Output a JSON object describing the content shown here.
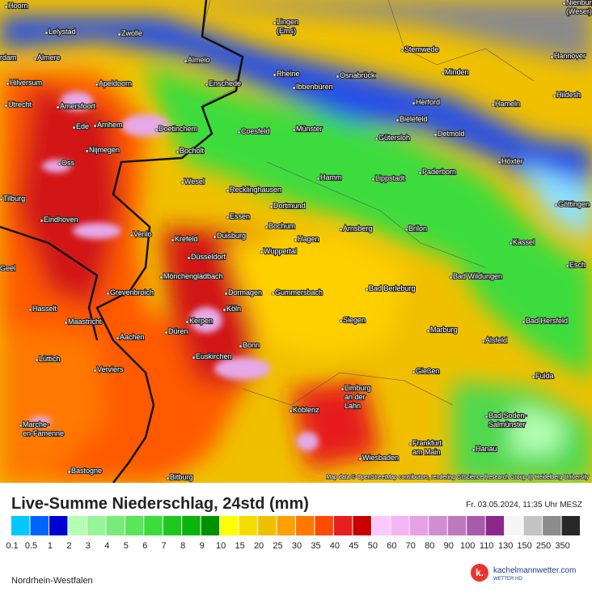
{
  "map": {
    "cities": [
      "Hoorn",
      "Lelystad",
      "Zwolle",
      [
        "Lingen",
        "(Ems)"
      ],
      [
        "Nienburg",
        "(Weser)"
      ],
      "Stemwede",
      "Hannover",
      "rdam",
      "Almere",
      "Almelo",
      "Rheine",
      "Osnabrück",
      "Minden",
      "Hilversum",
      "Apeldoorn",
      "Enschede",
      "Ibbenbüren",
      "Hildesh",
      "Utrecht",
      "Amersfoort",
      "Herford",
      "Hameln",
      "Ede",
      "Arnhem",
      "Doetinchem",
      "Coesfeld",
      "Münster",
      "Bielefeld",
      "Detmold",
      "Gütersloh",
      "Nijmegen",
      "Bocholt",
      "Oss",
      "Höxter",
      "Paderborn",
      "Wesel",
      "Hamm",
      "Lippstadt",
      "Recklinghausen",
      "Tilburg",
      "Dortmund",
      "Göttingen",
      "Essen",
      "Bochum",
      "Eindhoven",
      "Arnsberg",
      "Brilon",
      "Venlo",
      "Krefeld",
      "Duisburg",
      "Hagen",
      "Kassel",
      "Wuppertal",
      "Düsseldorf",
      "Geel",
      "Esch",
      "Mönchengladbach",
      "Bad Wildungen",
      "Grevenbroich",
      "Dormagen",
      "Gummersbach",
      "Bad Berleburg",
      "Köln",
      "Hasselt",
      "Siegen",
      "Kerpen",
      "Maastricht",
      "Bad Hersfeld",
      "Aachen",
      "Düren",
      "Marburg",
      "Bonn",
      "Alsfeld",
      "Euskirchen",
      "Lüttich",
      "Verviers",
      "Gießen",
      "Fulda",
      [
        "Limburg",
        "an der",
        "Lahn"
      ],
      "Koblenz",
      [
        "Bad Soden-",
        "Salmünster"
      ],
      [
        "Marche-",
        "en-Famenne"
      ],
      [
        "Frankfurt",
        "am Main"
      ],
      "Hanau",
      "Wiesbaden",
      "Bastogne",
      "Bitburg"
    ],
    "attribution": "Map data © OpenStreetMap contributors, rendering GIScience Research Group @ Heidelberg University"
  },
  "panel": {
    "title": "Live-Summe Niederschlag, 24std (mm)",
    "timestamp": "Fr. 03.05.2024, 11:35 Uhr MESZ",
    "region": "Nordrhein-Westfalen",
    "logo": {
      "name": "kachelmannwetter.com",
      "sub": "WETTER HD"
    }
  },
  "legend": {
    "labels": [
      "0.1",
      "0.5",
      "1",
      "2",
      "3",
      "4",
      "5",
      "6",
      "7",
      "8",
      "9",
      "10",
      "15",
      "20",
      "25",
      "30",
      "35",
      "40",
      "45",
      "50",
      "60",
      "70",
      "80",
      "90",
      "100",
      "110",
      "130",
      "150",
      "250",
      "350"
    ],
    "colors": [
      "#00c8ff",
      "#0064ff",
      "#0000d2",
      "#b4ffb4",
      "#96f596",
      "#78eb78",
      "#5ae65a",
      "#3cdc3c",
      "#1ec81e",
      "#0ab40a",
      "#009100",
      "#ffff00",
      "#f5dc00",
      "#f0c000",
      "#ffa000",
      "#ff7800",
      "#ff4b00",
      "#e61e1e",
      "#c80000",
      "#ffc8ff",
      "#f5b4f5",
      "#e6a0e6",
      "#d28cd2",
      "#be78be",
      "#aa5aaa",
      "#8c288c",
      "#f5f5f5",
      "#c3c3c3",
      "#8c8c8c",
      "#282828"
    ]
  }
}
